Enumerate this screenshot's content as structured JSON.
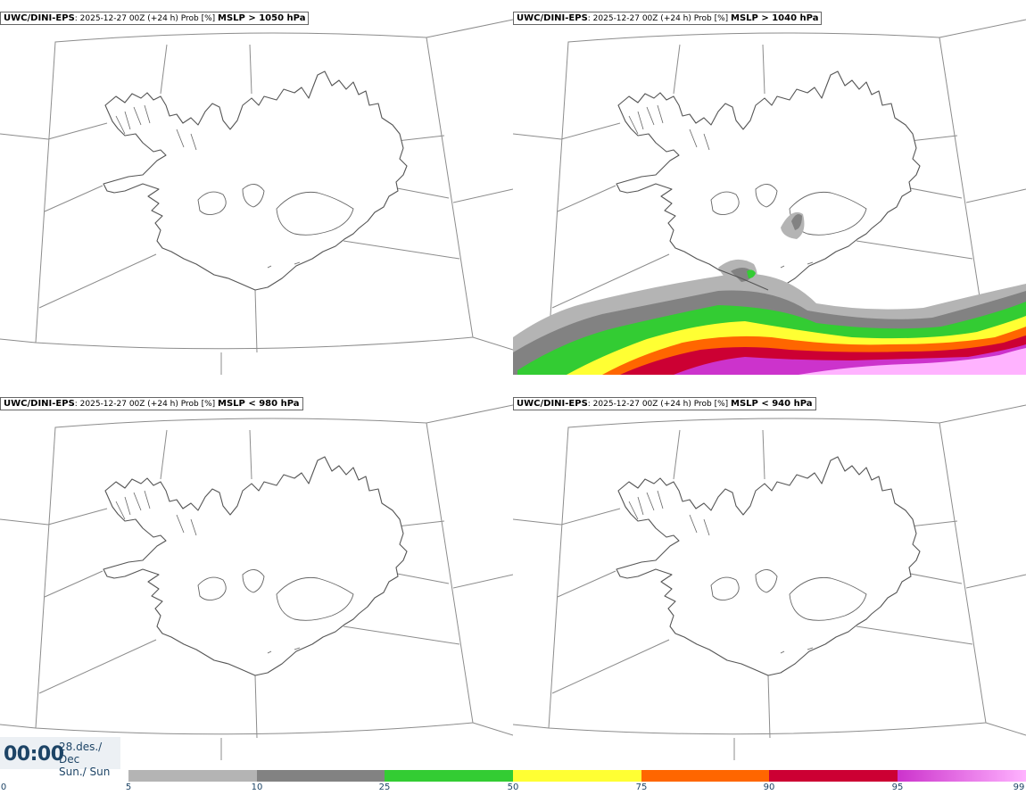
{
  "panels": [
    {
      "model": "UWC/DINI-EPS",
      "run": ": 2025-12-27 00Z (+24 h) Prob [%] ",
      "threshold": "MSLP > 1050 hPa"
    },
    {
      "model": "UWC/DINI-EPS",
      "run": ": 2025-12-27 00Z (+24 h) Prob [%] ",
      "threshold": "MSLP > 1040 hPa"
    },
    {
      "model": "UWC/DINI-EPS",
      "run": ": 2025-12-27 00Z (+24 h) Prob [%] ",
      "threshold": "MSLP < 980 hPa"
    },
    {
      "model": "UWC/DINI-EPS",
      "run": ": 2025-12-27 00Z (+24 h) Prob [%] ",
      "threshold": "MSLP < 940 hPa"
    }
  ],
  "time": {
    "clock": "00:00",
    "date_line1": "28.des./ Dec",
    "date_line2": "Sun./ Sun"
  },
  "legend": {
    "ticks": [
      "0",
      "5",
      "10",
      "25",
      "50",
      "75",
      "90",
      "95",
      "99"
    ],
    "colors": {
      "5-10": "#b4b4b4",
      "10-25": "#828282",
      "25-50": "#33cc33",
      "50-75": "#ffff33",
      "75-90": "#ff6600",
      "90-95": "#cc0033",
      "95-99": "#cc33cc",
      "99": "#ffb3ff"
    }
  },
  "icons": {
    "map": "iceland-map-icon"
  }
}
